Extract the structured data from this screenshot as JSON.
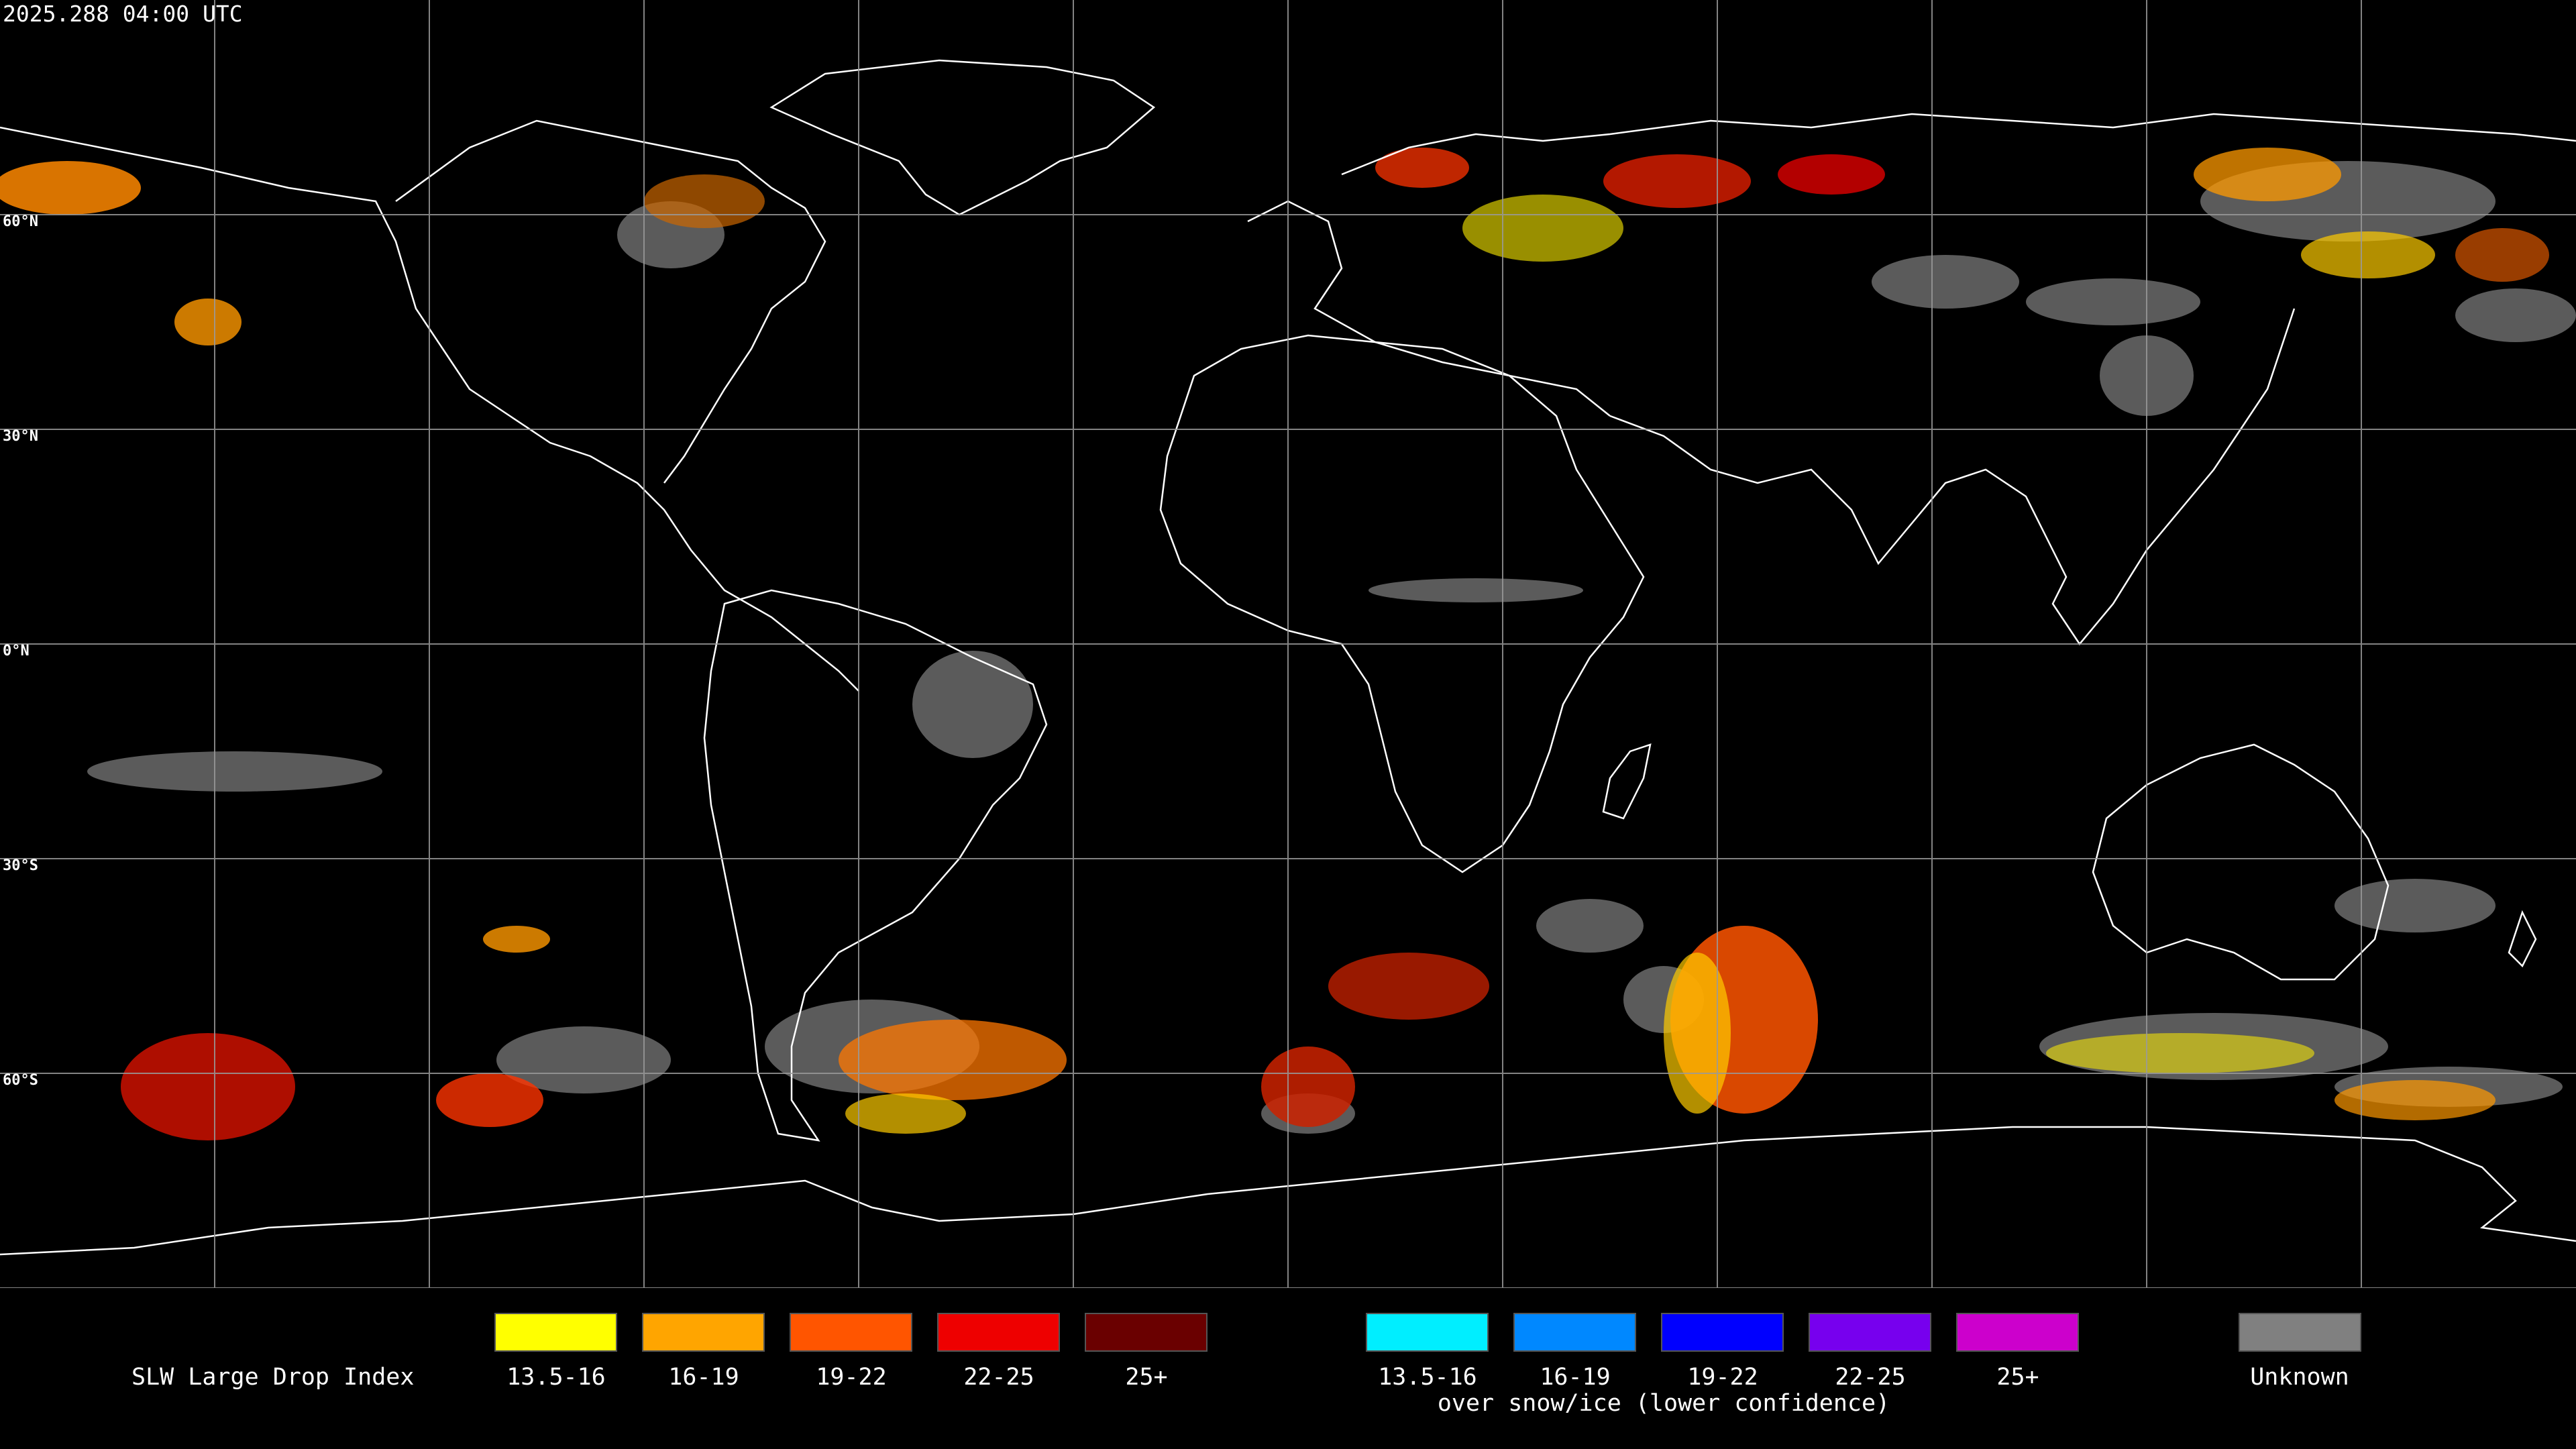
{
  "timestamp": "2025.288 04:00 UTC",
  "map": {
    "lat_labels": [
      "60°N",
      "30°N",
      "0°N",
      "30°S",
      "60°S"
    ],
    "colors": {
      "coast": "#ffffff",
      "grid": "#9a9a9a",
      "unknown": "#808080",
      "yellow": "#ffff00",
      "orange": "#ff9900",
      "red": "#ff0000",
      "dark_red": "#6e0000"
    }
  },
  "legend": {
    "title": "SLW Large Drop Index",
    "warm_items": [
      {
        "label": "13.5-16",
        "color": "#ffff00"
      },
      {
        "label": "16-19",
        "color": "#ffa500"
      },
      {
        "label": "19-22",
        "color": "#ff5500"
      },
      {
        "label": "22-25",
        "color": "#ee0000"
      },
      {
        "label": "25+",
        "color": "#6a0000"
      }
    ],
    "cold_items": [
      {
        "label": "13.5-16",
        "color": "#00eeff"
      },
      {
        "label": "16-19",
        "color": "#0088ff"
      },
      {
        "label": "19-22",
        "color": "#0000ff"
      },
      {
        "label": "22-25",
        "color": "#7700ee"
      },
      {
        "label": "25+",
        "color": "#cc00cc"
      }
    ],
    "cold_caption": "over snow/ice (lower confidence)",
    "unknown": {
      "label": "Unknown",
      "color": "#808080"
    }
  }
}
